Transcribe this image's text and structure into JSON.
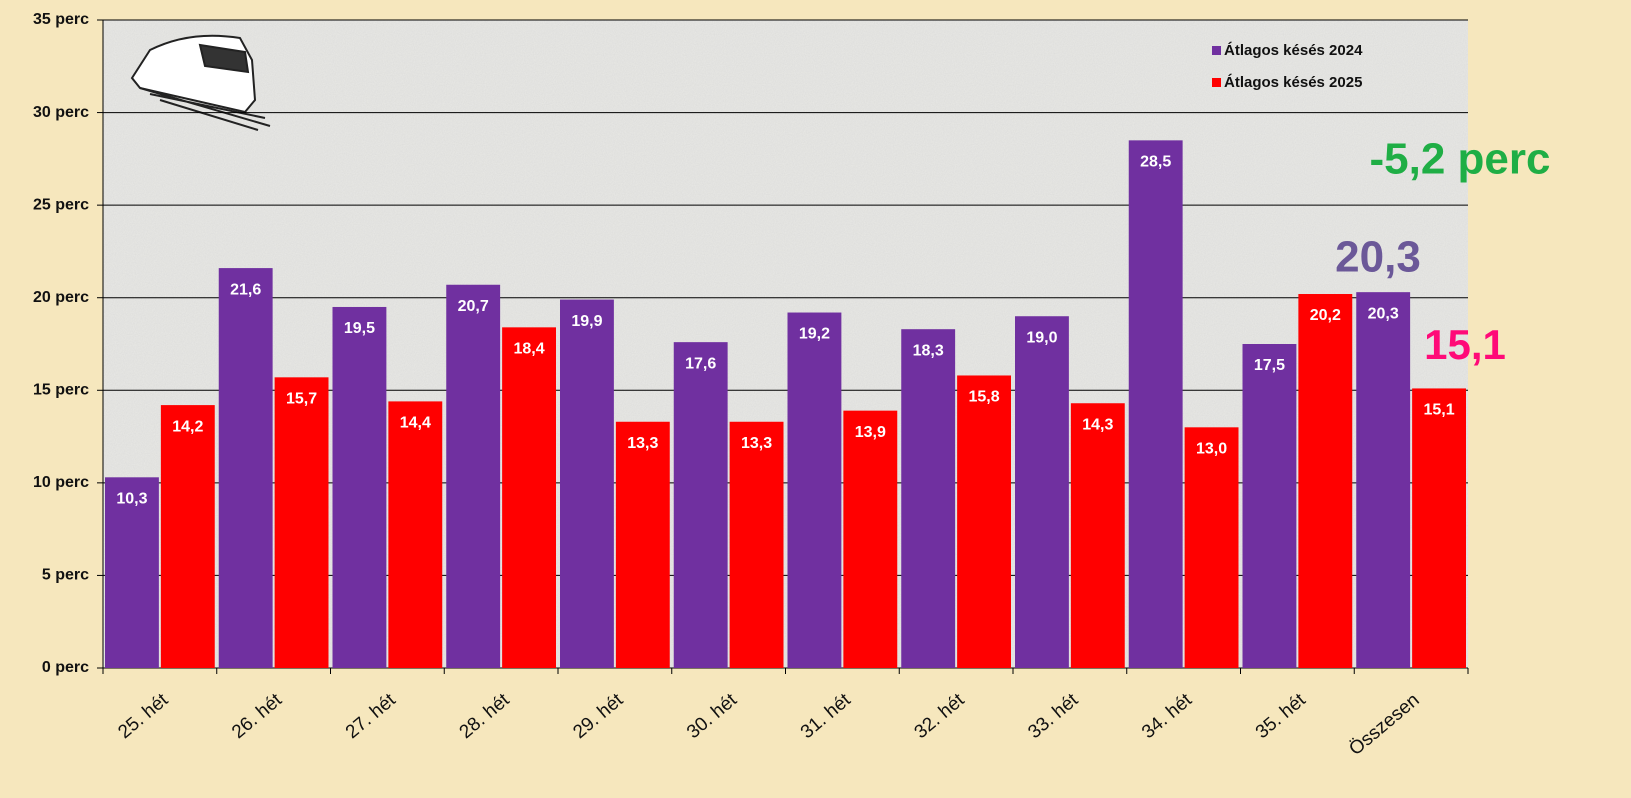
{
  "chart_data": {
    "type": "bar",
    "categories": [
      "25. hét",
      "26. hét",
      "27. hét",
      "28. hét",
      "29. hét",
      "30. hét",
      "31. hét",
      "32. hét",
      "33. hét",
      "34. hét",
      "35. hét",
      "Összesen"
    ],
    "series": [
      {
        "name": "Átlagos késés 2024",
        "color": "#7030a0",
        "values": [
          10.3,
          21.6,
          19.5,
          20.7,
          19.9,
          17.6,
          19.2,
          18.3,
          19.0,
          28.5,
          17.5,
          20.3
        ],
        "value_labels": [
          "10,3",
          "21,6",
          "19,5",
          "20,7",
          "19,9",
          "17,6",
          "19,2",
          "18,3",
          "19,0",
          "28,5",
          "17,5",
          "20,3"
        ]
      },
      {
        "name": "Átlagos késés 2025",
        "color": "#ff0000",
        "values": [
          14.2,
          15.7,
          14.4,
          18.4,
          13.3,
          13.3,
          13.9,
          15.8,
          14.3,
          13.0,
          20.2,
          15.1
        ],
        "value_labels": [
          "14,2",
          "15,7",
          "14,4",
          "18,4",
          "13,3",
          "13,3",
          "13,9",
          "15,8",
          "14,3",
          "13,0",
          "20,2",
          "15,1"
        ]
      }
    ],
    "ylim": [
      0,
      35
    ],
    "yticks": [
      {
        "value": 0,
        "label": "0 perc"
      },
      {
        "value": 5,
        "label": "5 perc"
      },
      {
        "value": 10,
        "label": "10 perc"
      },
      {
        "value": 15,
        "label": "15 perc"
      },
      {
        "value": 20,
        "label": "20 perc"
      },
      {
        "value": 25,
        "label": "25 perc"
      },
      {
        "value": 30,
        "label": "30 perc"
      },
      {
        "value": 35,
        "label": "35 perc"
      }
    ],
    "grid": true,
    "legend": "upper right",
    "annotations": [
      {
        "text": "-5,2 perc",
        "color": "#1fae45"
      },
      {
        "text": "20,3",
        "color": "#6b5898"
      },
      {
        "text": "15,1",
        "color": "#ff0a78"
      }
    ]
  }
}
